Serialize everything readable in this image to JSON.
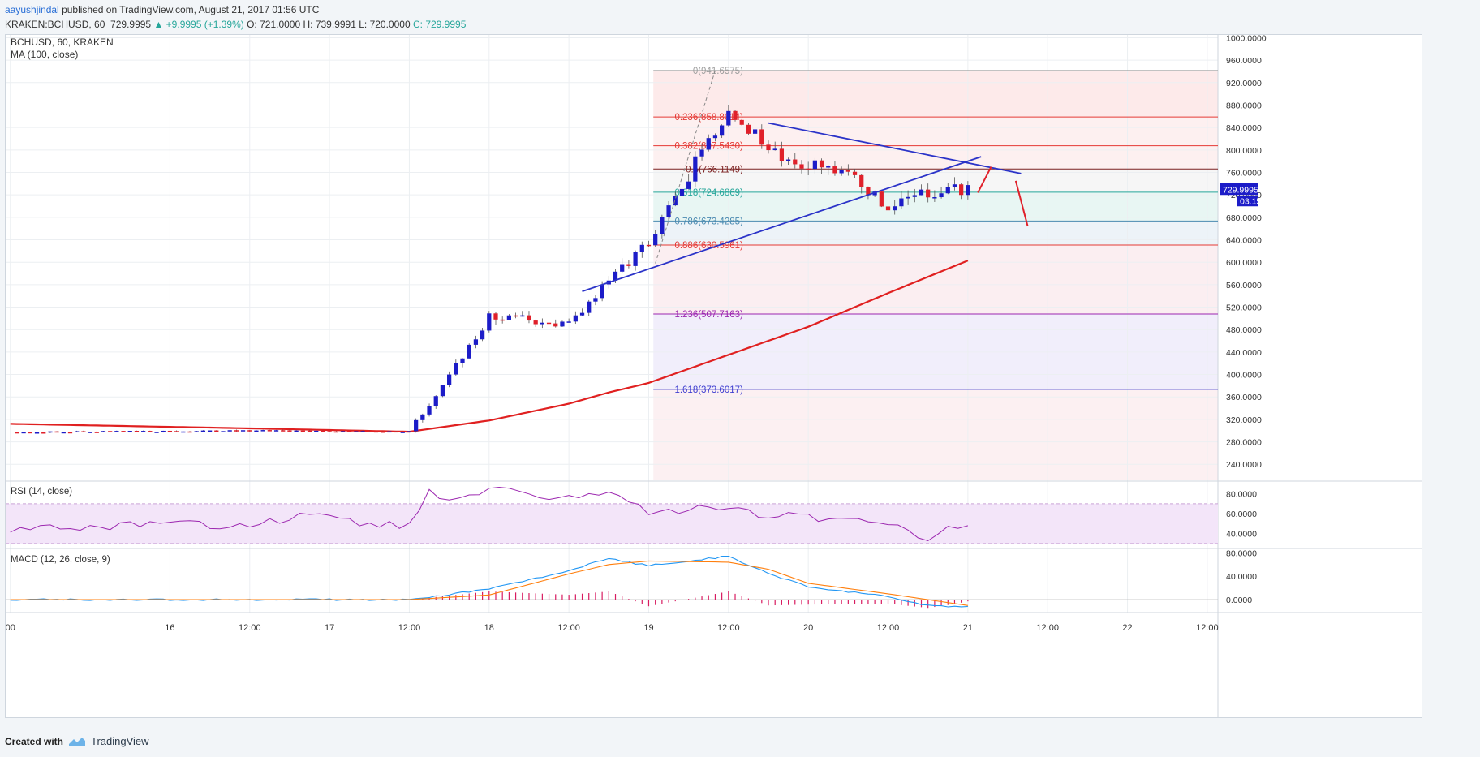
{
  "header": {
    "author": "aayushjindal",
    "published": "published on TradingView.com, August 21, 2017 01:56 UTC",
    "symbol": "KRAKEN:BCHUSD, 60",
    "last": "729.9995",
    "change": "+9.9995 (+1.39%)",
    "open": "O: 721.0000",
    "high": "H: 739.9991",
    "low": "L: 720.0000",
    "close": "C: 729.9995"
  },
  "footer": {
    "created_with": "Created with",
    "brand": "TradingView"
  },
  "colors": {
    "bull": "#1c1cc8",
    "bear": "#e0202a",
    "ma": "#e02020",
    "trend": "#2b33c8",
    "rsi": "#9c27b0",
    "macd": "#2196f3",
    "signal": "#ff7f0e",
    "hist": "#d81b60"
  },
  "chart_data": {
    "type": "candlestick",
    "main": {
      "title": "BCHUSD, 60, KRAKEN",
      "indicator": "MA (100, close)",
      "y_ticks": [
        "1000.0000",
        "960.0000",
        "920.0000",
        "880.0000",
        "840.0000",
        "800.0000",
        "760.0000",
        "720.0000",
        "680.0000",
        "640.0000",
        "600.0000",
        "560.0000",
        "520.0000",
        "480.0000",
        "440.0000",
        "400.0000",
        "360.0000",
        "320.0000",
        "280.0000",
        "240.0000"
      ],
      "ylim": [
        210,
        1005
      ],
      "last_price_label": "729.9995",
      "countdown_label": "03:15",
      "fib_levels": [
        {
          "label": "0(941.6575)",
          "value": 941.6575,
          "color": "#9e9e9e"
        },
        {
          "label": "0.236(858.8014)",
          "value": 858.8014,
          "color": "#e53935"
        },
        {
          "label": "0.382(807.5430)",
          "value": 807.543,
          "color": "#e53935"
        },
        {
          "label": "0.5(766.1149)",
          "value": 766.1149,
          "color": "#7b1f1f"
        },
        {
          "label": "0.618(724.6869)",
          "value": 724.6869,
          "color": "#26a69a"
        },
        {
          "label": "0.786(673.4285)",
          "value": 673.4285,
          "color": "#4a8ab0"
        },
        {
          "label": "0.886(630.5961)",
          "value": 630.5961,
          "color": "#e53935"
        },
        {
          "label": "1.236(507.7163)",
          "value": 507.7163,
          "color": "#9c27b0"
        },
        {
          "label": "1.618(373.6017)",
          "value": 373.6017,
          "color": "#3f3fd0"
        }
      ]
    },
    "rsi": {
      "title": "RSI (14, close)",
      "y_ticks": [
        "80.0000",
        "60.0000",
        "40.0000"
      ],
      "ylim": [
        25,
        92
      ],
      "bands": [
        30,
        70
      ]
    },
    "macd": {
      "title": "MACD (12, 26, close, 9)",
      "y_ticks": [
        "80.0000",
        "40.0000",
        "0.0000"
      ],
      "ylim": [
        -22,
        86
      ]
    },
    "x_ticks": [
      "00",
      "16",
      "12:00",
      "17",
      "12:00",
      "18",
      "12:00",
      "19",
      "12:00",
      "20",
      "12:00",
      "21",
      "12:00",
      "22",
      "12:00"
    ],
    "x_tick_hours": [
      -96,
      -72,
      -60,
      -48,
      -36,
      -24,
      -12,
      0,
      12,
      24,
      36,
      48,
      60,
      72,
      84
    ],
    "x_range_hours": [
      -96.7,
      85.6
    ],
    "candle_anchors_hours": [
      -96,
      -60,
      -36,
      -24,
      -12,
      0,
      8,
      12,
      18,
      24,
      30,
      36,
      42,
      48
    ],
    "candle_anchors_close": [
      297,
      300,
      298,
      500,
      493,
      633,
      795,
      868,
      806,
      770,
      763,
      695,
      723,
      730
    ],
    "ma_anchors_hours": [
      -96,
      -60,
      -36,
      -24,
      -12,
      -6,
      0,
      12,
      24,
      36,
      48
    ],
    "ma_anchors_value": [
      312,
      304,
      298,
      318,
      348,
      368,
      385,
      435,
      485,
      545,
      603
    ],
    "trend_lines": [
      {
        "from": [
          -10,
          548
        ],
        "to": [
          50,
          788
        ]
      },
      {
        "from": [
          18,
          848
        ],
        "to": [
          56,
          758
        ]
      }
    ],
    "projection": [
      {
        "from": [
          49.5,
          724
        ],
        "to": [
          51.5,
          770
        ]
      },
      {
        "from": [
          55.2,
          745
        ],
        "to": [
          57,
          664
        ]
      }
    ],
    "rsi_anchors_hours": [
      -96,
      -84,
      -72,
      -60,
      -51,
      -42,
      -36,
      -33,
      -30,
      -24,
      -12,
      -6,
      0,
      6,
      12,
      18,
      24,
      36,
      42,
      45,
      48
    ],
    "rsi_anchors_value": [
      45,
      47,
      50,
      48,
      60,
      50,
      48,
      86,
      70,
      85,
      75,
      82,
      60,
      65,
      66,
      58,
      57,
      50,
      33,
      47,
      46
    ],
    "macd_anchors_hours": [
      -96,
      -36,
      -24,
      -12,
      -6,
      0,
      12,
      18,
      24,
      36,
      42,
      46,
      48
    ],
    "macd_anchors_value": [
      0,
      0,
      18,
      50,
      70,
      58,
      74,
      45,
      22,
      5,
      -10,
      -12,
      -12
    ],
    "signal_anchors_hours": [
      -96,
      -36,
      -24,
      -12,
      -6,
      0,
      12,
      18,
      24,
      36,
      42,
      48
    ],
    "signal_anchors_value": [
      0,
      0,
      8,
      44,
      60,
      66,
      64,
      52,
      28,
      10,
      0,
      -10
    ]
  }
}
